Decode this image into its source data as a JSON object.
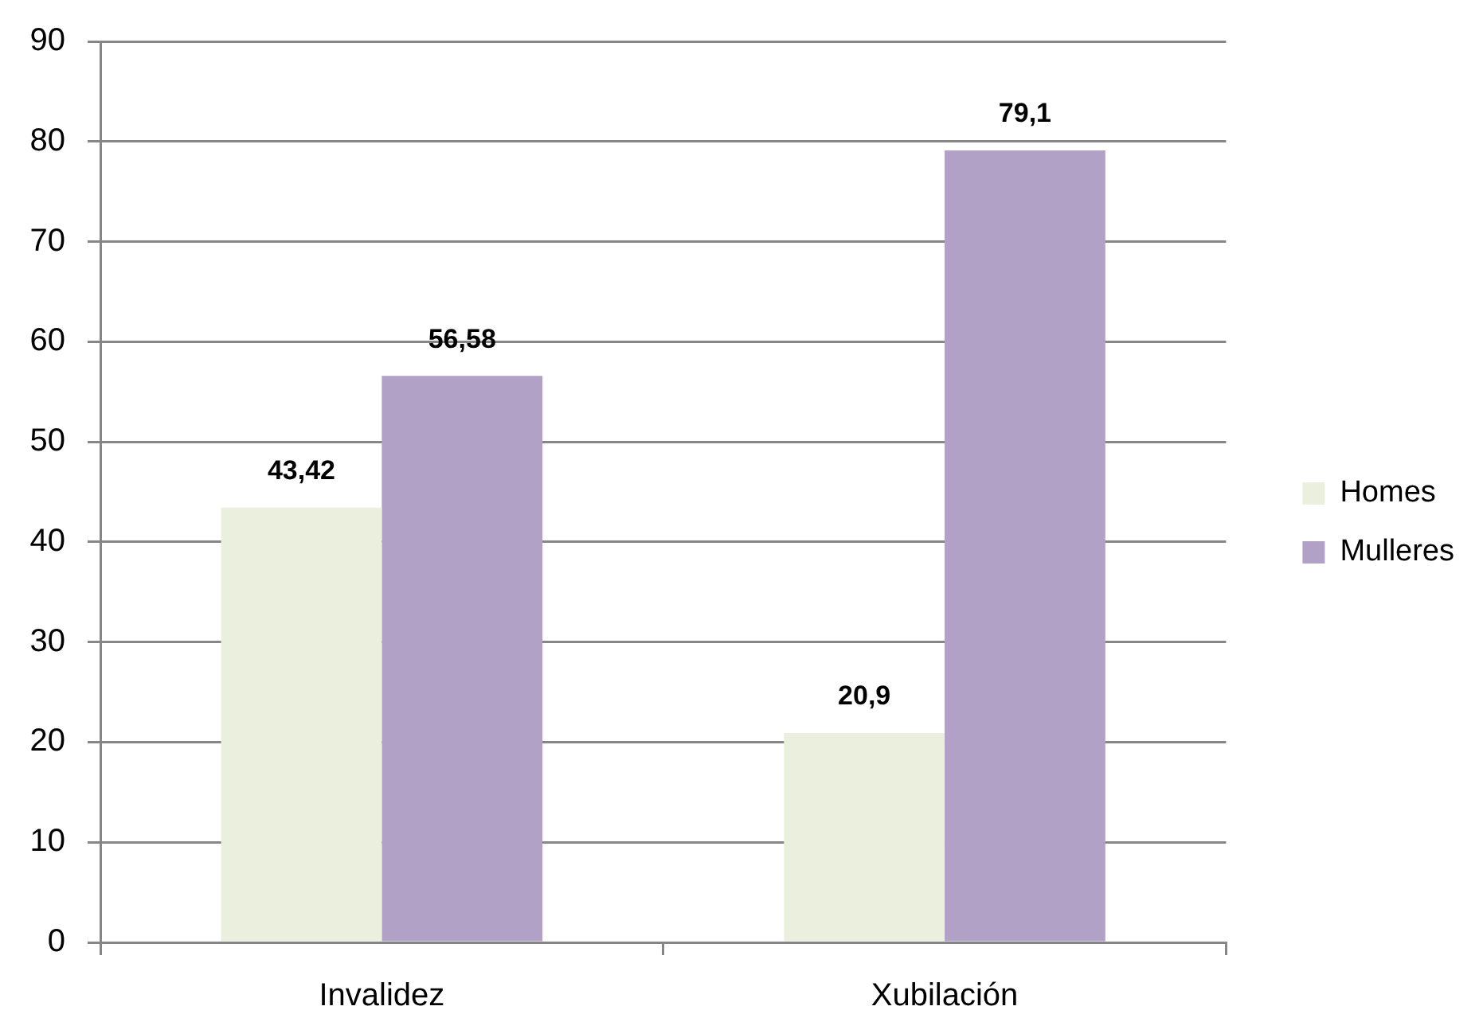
{
  "chart_data": {
    "type": "bar",
    "categories": [
      "Invalidez",
      "Xubilación"
    ],
    "series": [
      {
        "name": "Homes",
        "color": "#ebf0de",
        "values": [
          43.42,
          20.9
        ],
        "value_labels": [
          "43,42",
          "20,9"
        ]
      },
      {
        "name": "Mulleres",
        "color": "#b2a1c7",
        "values": [
          56.58,
          79.1
        ],
        "value_labels": [
          "56,58",
          "79,1"
        ]
      }
    ],
    "ylim": [
      0,
      90
    ],
    "yticks": [
      0,
      10,
      20,
      30,
      40,
      50,
      60,
      70,
      80,
      90
    ],
    "grid": "y",
    "legend": "right"
  }
}
